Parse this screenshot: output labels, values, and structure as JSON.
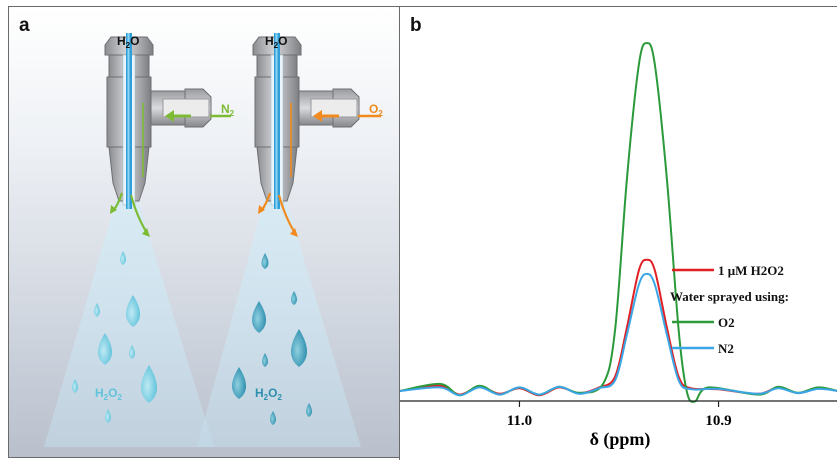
{
  "panel_a": {
    "letter": "a",
    "nozzles": [
      {
        "top_label": "H2O",
        "gas_label": "N2",
        "gas_color": "#7dbb35",
        "product_label": "H2O2"
      },
      {
        "top_label": "H2O",
        "gas_label": "O2",
        "gas_color": "#f08a1e",
        "product_label": "H2O2"
      }
    ]
  },
  "panel_b": {
    "letter": "b"
  },
  "chart_data": {
    "type": "line",
    "xlabel": "δ (ppm)",
    "xlim": [
      11.06,
      10.84
    ],
    "x_reversed": true,
    "xticks": [
      11.0,
      10.9
    ],
    "xtick_labels": [
      "11.0",
      "10.9"
    ],
    "y_axis_visible": false,
    "ylim": [
      -0.02,
      1.0
    ],
    "legend": {
      "placement": "right",
      "entries": [
        {
          "label": "1 μM H2O2",
          "color": "#e02025"
        },
        {
          "label": "Water sprayed using:",
          "color": null
        },
        {
          "label": "O2",
          "color": "#2a9a3a"
        },
        {
          "label": "N2",
          "color": "#3aa6e6"
        }
      ]
    },
    "series": [
      {
        "name": "1 μM H2O2",
        "color": "#e02025",
        "points": [
          [
            11.06,
            0.0
          ],
          [
            11.04,
            0.015
          ],
          [
            11.03,
            -0.01
          ],
          [
            11.02,
            0.012
          ],
          [
            11.01,
            -0.008
          ],
          [
            11.0,
            0.008
          ],
          [
            10.99,
            -0.012
          ],
          [
            10.98,
            0.01
          ],
          [
            10.97,
            -0.006
          ],
          [
            10.96,
            0.01
          ],
          [
            10.952,
            0.04
          ],
          [
            10.946,
            0.18
          ],
          [
            10.94,
            0.34
          ],
          [
            10.936,
            0.37
          ],
          [
            10.932,
            0.34
          ],
          [
            10.926,
            0.18
          ],
          [
            10.92,
            0.04
          ],
          [
            10.914,
            0.008
          ],
          [
            10.9,
            0.005
          ],
          [
            10.88,
            -0.008
          ],
          [
            10.87,
            0.01
          ],
          [
            10.86,
            -0.006
          ],
          [
            10.85,
            0.008
          ],
          [
            10.84,
            0.0
          ]
        ]
      },
      {
        "name": "O2",
        "color": "#2a9a3a",
        "points": [
          [
            11.06,
            0.0
          ],
          [
            11.04,
            0.02
          ],
          [
            11.03,
            -0.012
          ],
          [
            11.02,
            0.015
          ],
          [
            11.01,
            -0.01
          ],
          [
            11.0,
            0.01
          ],
          [
            10.99,
            -0.01
          ],
          [
            10.98,
            0.012
          ],
          [
            10.97,
            -0.005
          ],
          [
            10.958,
            0.02
          ],
          [
            10.952,
            0.17
          ],
          [
            10.946,
            0.6
          ],
          [
            10.94,
            0.92
          ],
          [
            10.936,
            0.98
          ],
          [
            10.932,
            0.92
          ],
          [
            10.926,
            0.6
          ],
          [
            10.92,
            0.17
          ],
          [
            10.916,
            0.0
          ],
          [
            10.912,
            -0.03
          ],
          [
            10.905,
            0.01
          ],
          [
            10.88,
            -0.01
          ],
          [
            10.87,
            0.012
          ],
          [
            10.86,
            -0.005
          ],
          [
            10.85,
            0.01
          ],
          [
            10.84,
            0.0
          ]
        ]
      },
      {
        "name": "N2",
        "color": "#3aa6e6",
        "points": [
          [
            11.06,
            0.0
          ],
          [
            11.04,
            0.01
          ],
          [
            11.03,
            -0.012
          ],
          [
            11.02,
            0.01
          ],
          [
            11.01,
            -0.01
          ],
          [
            11.0,
            0.01
          ],
          [
            10.99,
            -0.01
          ],
          [
            10.98,
            0.012
          ],
          [
            10.97,
            -0.008
          ],
          [
            10.96,
            0.008
          ],
          [
            10.952,
            0.03
          ],
          [
            10.946,
            0.16
          ],
          [
            10.94,
            0.3
          ],
          [
            10.936,
            0.33
          ],
          [
            10.932,
            0.3
          ],
          [
            10.926,
            0.16
          ],
          [
            10.92,
            0.03
          ],
          [
            10.914,
            0.005
          ],
          [
            10.9,
            0.006
          ],
          [
            10.88,
            -0.008
          ],
          [
            10.87,
            0.008
          ],
          [
            10.86,
            -0.006
          ],
          [
            10.85,
            0.006
          ],
          [
            10.84,
            0.0
          ]
        ]
      }
    ]
  }
}
